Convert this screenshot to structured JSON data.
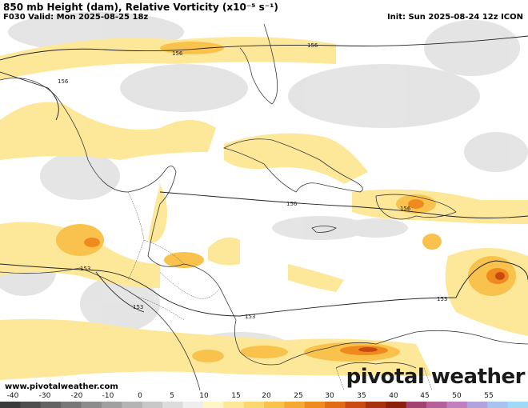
{
  "header": {
    "title": "850 mb Height (dam), Relative Vorticity (x10⁻⁵ s⁻¹)",
    "valid": "F030 Valid: Mon 2025-08-25 18z",
    "init": "Init: Sun 2025-08-24 12z ICON"
  },
  "footer": {
    "site": "www.pivotalweather.com",
    "brand": "pivotal weather"
  },
  "contours": {
    "north_label": "156",
    "mid_label": "156",
    "south_label": "153"
  },
  "colorbar": {
    "ticks": [
      "-40",
      "-30",
      "-20",
      "-10",
      "0",
      "5",
      "10",
      "15",
      "20",
      "25",
      "30",
      "35",
      "40",
      "45",
      "50",
      "55"
    ]
  },
  "colors": {
    "ocean": "#ffffff",
    "light_vort": "#fde89a",
    "mid_vort": "#f9c24d",
    "high_vort": "#ef8a1e",
    "max_vort": "#c84a12",
    "neg_vort": "#dcdcdc",
    "coast": "#3a3a3a"
  }
}
